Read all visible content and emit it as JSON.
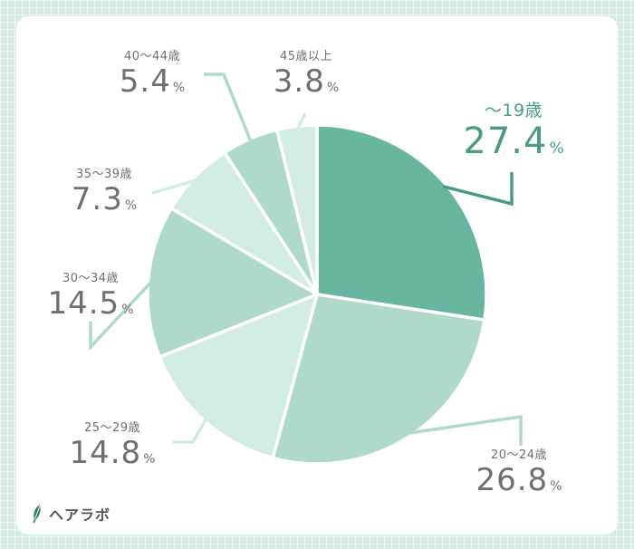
{
  "chart_data": {
    "type": "pie",
    "categories": [
      "〜19歳",
      "20〜24歳",
      "25〜29歳",
      "30〜34歳",
      "35〜39歳",
      "40〜44歳",
      "45歳以上"
    ],
    "values": [
      27.4,
      26.8,
      14.8,
      14.5,
      7.3,
      5.4,
      3.8
    ],
    "value_texts": [
      "27.4",
      "26.8",
      "14.8",
      "14.5",
      "7.3",
      "5.4",
      "3.8"
    ],
    "unit": "%",
    "colors": [
      "#68b5a2",
      "#afd9cb",
      "#d2ece3",
      "#afd9cb",
      "#d2ece3",
      "#afd9cb",
      "#d2ece3"
    ],
    "highlight_color": "#4a9a86",
    "label_color": "#6f6f6f",
    "legend": "none"
  },
  "brand": {
    "name": "ヘアラボ",
    "icon": "leaf-icon"
  }
}
